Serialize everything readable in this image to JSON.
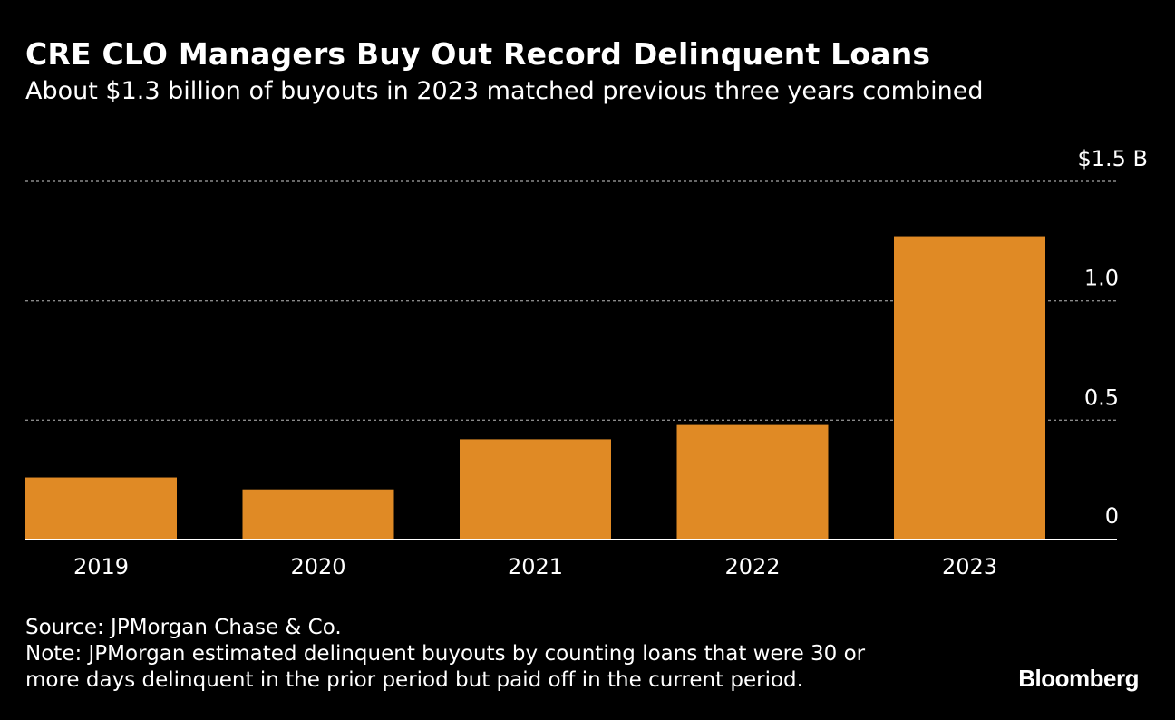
{
  "header": {
    "title": "CRE CLO Managers Buy Out Record Delinquent Loans",
    "subtitle": "About $1.3 billion of buyouts in 2023 matched previous three years combined"
  },
  "chart_data": {
    "type": "bar",
    "title": "CRE CLO Managers Buy Out Record Delinquent Loans",
    "subtitle": "About $1.3 billion of buyouts in 2023 matched previous three years combined",
    "categories": [
      "2019",
      "2020",
      "2021",
      "2022",
      "2023"
    ],
    "values": [
      0.26,
      0.21,
      0.42,
      0.48,
      1.27
    ],
    "ylim": [
      0,
      1.5
    ],
    "yticks": [
      0,
      0.5,
      1.0,
      1.5
    ],
    "ytick_labels": [
      "0",
      "0.5",
      "1.0",
      "$1.5 B"
    ],
    "grid": true,
    "bar_color": "#e08a25"
  },
  "footer": {
    "source": "Source: JPMorgan Chase & Co.",
    "note_line1": "Note: JPMorgan estimated delinquent buyouts by counting loans that were 30 or",
    "note_line2": "more days delinquent in the prior period but paid off in the current period.",
    "brand": "Bloomberg"
  }
}
